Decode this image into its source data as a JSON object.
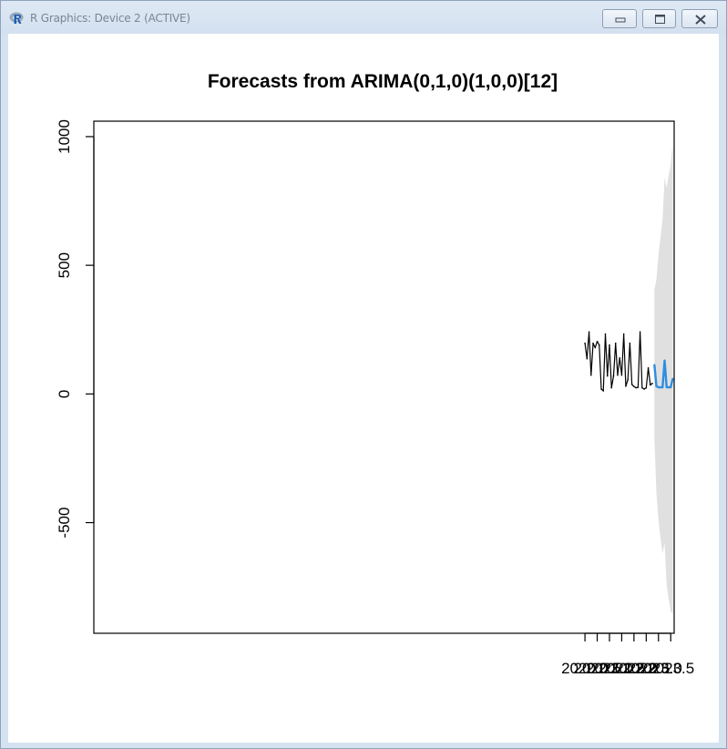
{
  "window": {
    "title": "R Graphics: Device 2 (ACTIVE)",
    "app_icon": "r-logo-icon",
    "buttons": [
      {
        "name": "minimize-button",
        "icon": "minimize-icon"
      },
      {
        "name": "maximize-button",
        "icon": "maximize-icon"
      },
      {
        "name": "close-button",
        "icon": "close-icon"
      }
    ]
  },
  "chart_data": {
    "type": "line",
    "title": "Forecasts from ARIMA(0,1,0)(1,0,0)[12]",
    "xlabel": "",
    "ylabel": "",
    "xlim": [
      1999.96,
      2023.64
    ],
    "ylim": [
      -930,
      1060
    ],
    "xticks": [
      2020.0,
      2020.5,
      2021.0,
      2021.5,
      2022.0,
      2022.5,
      2023.0,
      2023.5
    ],
    "xtick_labels": [
      "2020.0",
      "2020.5",
      "2021.0",
      "2021.5",
      "2022.0",
      "2022.5",
      "2023.0",
      "2023.5"
    ],
    "yticks": [
      -500,
      0,
      500,
      1000
    ],
    "ytick_labels": [
      "-500",
      "0",
      "500",
      "1000"
    ],
    "grid": false,
    "colors": {
      "observed": "#000000",
      "forecast": "#2e8ee0",
      "interval": "#e0e0e0"
    },
    "series": [
      {
        "x": [
          2020.0,
          2020.083,
          2020.167,
          2020.25,
          2020.333,
          2020.417,
          2020.5,
          2020.583,
          2020.667,
          2020.75,
          2020.833,
          2020.917,
          2021.0,
          2021.083,
          2021.167,
          2021.25,
          2021.333,
          2021.417,
          2021.5,
          2021.583,
          2021.667,
          2021.75,
          2021.833,
          2021.917,
          2022.0,
          2022.083,
          2022.167,
          2022.25,
          2022.333,
          2022.417,
          2022.5,
          2022.583,
          2022.667,
          2022.75
        ],
        "values": [
          197,
          137,
          241,
          73,
          197,
          180,
          204,
          190,
          19,
          12,
          233,
          70,
          190,
          24,
          70,
          197,
          73,
          140,
          73,
          233,
          30,
          55,
          197,
          37,
          29,
          24,
          26,
          241,
          24,
          19,
          24,
          101,
          35,
          41
        ]
      },
      {
        "x": [
          2022.833,
          2022.917,
          2023.0,
          2023.083,
          2023.167,
          2023.25,
          2023.333,
          2023.417,
          2023.5,
          2023.583
        ],
        "values": [
          114,
          30,
          26,
          26,
          26,
          130,
          26,
          26,
          26,
          60
        ]
      }
    ],
    "interval": {
      "x": [
        2022.833,
        2022.917,
        2023.0,
        2023.083,
        2023.167,
        2023.25,
        2023.333,
        2023.417,
        2023.5,
        2023.583
      ],
      "upper": [
        405,
        445,
        540,
        610,
        680,
        840,
        800,
        850,
        890,
        980
      ],
      "lower": [
        -175,
        -385,
        -490,
        -560,
        -620,
        -580,
        -740,
        -800,
        -845,
        -855
      ]
    }
  }
}
